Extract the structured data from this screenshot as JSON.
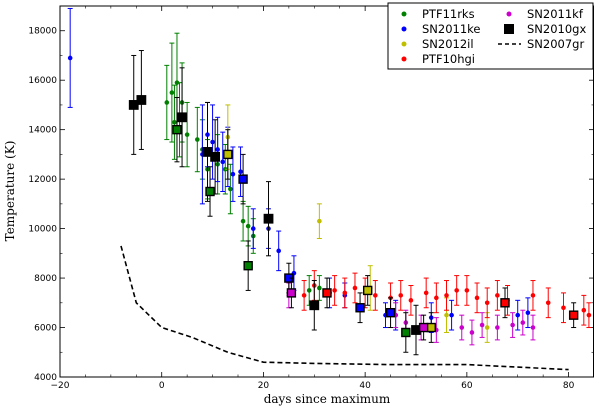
{
  "chart_data": {
    "type": "scatter",
    "xlabel": "days since maximum",
    "ylabel": "Temperature (K)",
    "xlim": [
      -20,
      85
    ],
    "ylim": [
      4000,
      19000
    ],
    "xticks": [
      -20,
      0,
      20,
      40,
      60,
      80
    ],
    "yticks": [
      4000,
      6000,
      8000,
      10000,
      12000,
      14000,
      16000,
      18000
    ],
    "legend_position": "top-right",
    "series": [
      {
        "name": "PTF11rks",
        "color": "#008000",
        "marker": "circle",
        "points": [
          {
            "x": 1,
            "y": 15100,
            "err": 1500
          },
          {
            "x": 2,
            "y": 15500,
            "err": 2000
          },
          {
            "x": 3,
            "y": 15900,
            "err": 2000
          },
          {
            "x": 4,
            "y": 15100,
            "err": 1600
          },
          {
            "x": 2.5,
            "y": 14300,
            "err": 1500
          },
          {
            "x": 3.5,
            "y": 14400,
            "err": 1500
          },
          {
            "x": 5,
            "y": 13800,
            "err": 1300
          },
          {
            "x": 7,
            "y": 13600,
            "err": 1300
          },
          {
            "x": 8,
            "y": 13200,
            "err": 1200
          },
          {
            "x": 9,
            "y": 12400,
            "err": 1200
          },
          {
            "x": 11,
            "y": 12600,
            "err": 1200
          },
          {
            "x": 12.5,
            "y": 12400,
            "err": 1000
          },
          {
            "x": 13.5,
            "y": 11600,
            "err": 1000
          },
          {
            "x": 16,
            "y": 10300,
            "err": 800
          },
          {
            "x": 17,
            "y": 10100,
            "err": 800
          },
          {
            "x": 18,
            "y": 9700,
            "err": 700
          },
          {
            "x": 29,
            "y": 7500,
            "err": 600
          },
          {
            "x": 31,
            "y": 7600,
            "err": 500
          }
        ]
      },
      {
        "name": "SN2011ke",
        "color": "#0000ff",
        "marker": "circle",
        "points": [
          {
            "x": -18,
            "y": 16900,
            "err": 2000
          },
          {
            "x": 8,
            "y": 13000,
            "err": 2000
          },
          {
            "x": 9,
            "y": 13800,
            "err": 1300
          },
          {
            "x": 10,
            "y": 13500,
            "err": 1500
          },
          {
            "x": 11,
            "y": 13200,
            "err": 1300
          },
          {
            "x": 12,
            "y": 12700,
            "err": 1200
          },
          {
            "x": 13,
            "y": 12900,
            "err": 1200
          },
          {
            "x": 14,
            "y": 12200,
            "err": 1100
          },
          {
            "x": 15.5,
            "y": 12300,
            "err": 1000
          },
          {
            "x": 18,
            "y": 10000,
            "err": 800
          },
          {
            "x": 21,
            "y": 10000,
            "err": 800
          },
          {
            "x": 23,
            "y": 9100,
            "err": 800
          },
          {
            "x": 26,
            "y": 8200,
            "err": 700
          },
          {
            "x": 33,
            "y": 7400,
            "err": 600
          },
          {
            "x": 36,
            "y": 7300,
            "err": 500
          },
          {
            "x": 44,
            "y": 6500,
            "err": 500
          },
          {
            "x": 46,
            "y": 6500,
            "err": 600
          },
          {
            "x": 53,
            "y": 6400,
            "err": 600
          },
          {
            "x": 57,
            "y": 6500,
            "err": 600
          },
          {
            "x": 70,
            "y": 6500,
            "err": 600
          },
          {
            "x": 72,
            "y": 6600,
            "err": 600
          }
        ]
      },
      {
        "name": "SN2012il",
        "color": "#bfbf00",
        "marker": "circle",
        "points": [
          {
            "x": 13,
            "y": 13700,
            "err": 1300
          },
          {
            "x": 31,
            "y": 10300,
            "err": 700
          },
          {
            "x": 41,
            "y": 7600,
            "err": 900
          },
          {
            "x": 56,
            "y": 6500,
            "err": 700
          },
          {
            "x": 64,
            "y": 6000,
            "err": 600
          }
        ]
      },
      {
        "name": "PTF10hgi",
        "color": "#ff0000",
        "marker": "circle",
        "points": [
          {
            "x": 28,
            "y": 7300,
            "err": 600
          },
          {
            "x": 30,
            "y": 7700,
            "err": 600
          },
          {
            "x": 34,
            "y": 7500,
            "err": 600
          },
          {
            "x": 36,
            "y": 7400,
            "err": 600
          },
          {
            "x": 38,
            "y": 7600,
            "err": 600
          },
          {
            "x": 40,
            "y": 7400,
            "err": 600
          },
          {
            "x": 42,
            "y": 7300,
            "err": 600
          },
          {
            "x": 45,
            "y": 7200,
            "err": 600
          },
          {
            "x": 47,
            "y": 7300,
            "err": 600
          },
          {
            "x": 49,
            "y": 7100,
            "err": 600
          },
          {
            "x": 52,
            "y": 7400,
            "err": 600
          },
          {
            "x": 54,
            "y": 7200,
            "err": 600
          },
          {
            "x": 56,
            "y": 7300,
            "err": 600
          },
          {
            "x": 58,
            "y": 7500,
            "err": 600
          },
          {
            "x": 60,
            "y": 7500,
            "err": 600
          },
          {
            "x": 62,
            "y": 7200,
            "err": 600
          },
          {
            "x": 64,
            "y": 7000,
            "err": 600
          },
          {
            "x": 66,
            "y": 7300,
            "err": 600
          },
          {
            "x": 68,
            "y": 7100,
            "err": 600
          },
          {
            "x": 73,
            "y": 7300,
            "err": 600
          },
          {
            "x": 76,
            "y": 7000,
            "err": 600
          },
          {
            "x": 79,
            "y": 6800,
            "err": 600
          },
          {
            "x": 83,
            "y": 6700,
            "err": 600
          },
          {
            "x": 84,
            "y": 6500,
            "err": 500
          }
        ]
      },
      {
        "name": "SN2011kf",
        "color": "#cc00cc",
        "marker": "circle",
        "points": [
          {
            "x": 25,
            "y": 7300,
            "err": 500
          },
          {
            "x": 46,
            "y": 6500,
            "err": 500
          },
          {
            "x": 48,
            "y": 6200,
            "err": 500
          },
          {
            "x": 51,
            "y": 6000,
            "err": 500
          },
          {
            "x": 54,
            "y": 5900,
            "err": 500
          },
          {
            "x": 59,
            "y": 6000,
            "err": 500
          },
          {
            "x": 61,
            "y": 5800,
            "err": 500
          },
          {
            "x": 63,
            "y": 6100,
            "err": 500
          },
          {
            "x": 66,
            "y": 6000,
            "err": 500
          },
          {
            "x": 69,
            "y": 6100,
            "err": 500
          },
          {
            "x": 71,
            "y": 6200,
            "err": 500
          },
          {
            "x": 73,
            "y": 6000,
            "err": 500
          }
        ]
      },
      {
        "name": "SN2010gx",
        "color": "#000000",
        "marker": "square",
        "points": [
          {
            "x": -5.5,
            "y": 15000,
            "err": 2000
          },
          {
            "x": -4,
            "y": 15200,
            "err": 2000
          },
          {
            "x": 4,
            "y": 14500,
            "err": 2000
          },
          {
            "x": 9,
            "y": 13100,
            "err": 2000
          },
          {
            "x": 10.5,
            "y": 12900,
            "err": 1500
          },
          {
            "x": 21,
            "y": 10400,
            "err": 1500
          },
          {
            "x": 30,
            "y": 6900,
            "err": 1000
          },
          {
            "x": 50,
            "y": 5900,
            "err": 1000
          }
        ]
      },
      {
        "name": "SN2007gr",
        "color": "#000000",
        "marker": "dashed-line",
        "points": [
          {
            "x": -8,
            "y": 9300
          },
          {
            "x": -5,
            "y": 7000
          },
          {
            "x": 0,
            "y": 6000
          },
          {
            "x": 6,
            "y": 5600
          },
          {
            "x": 13,
            "y": 5000
          },
          {
            "x": 20,
            "y": 4600
          },
          {
            "x": 30,
            "y": 4550
          },
          {
            "x": 45,
            "y": 4500
          },
          {
            "x": 60,
            "y": 4500
          },
          {
            "x": 70,
            "y": 4400
          },
          {
            "x": 80,
            "y": 4300
          }
        ]
      }
    ],
    "highlight_squares": [
      {
        "x": 3,
        "y": 14000,
        "err": 1300,
        "fill": "#008000"
      },
      {
        "x": 9.5,
        "y": 11500,
        "err": 1000,
        "fill": "#008000"
      },
      {
        "x": 17,
        "y": 8500,
        "err": 1000,
        "fill": "#008000"
      },
      {
        "x": 48,
        "y": 5800,
        "err": 800,
        "fill": "#008000"
      },
      {
        "x": 16,
        "y": 12000,
        "err": 1000,
        "fill": "#0000ff"
      },
      {
        "x": 25,
        "y": 8000,
        "err": 600,
        "fill": "#0000ff"
      },
      {
        "x": 39,
        "y": 6800,
        "err": 600,
        "fill": "#0000ff"
      },
      {
        "x": 45,
        "y": 6600,
        "err": 600,
        "fill": "#0000ff"
      },
      {
        "x": 13,
        "y": 13000,
        "err": 1000,
        "fill": "#bfbf00"
      },
      {
        "x": 40.5,
        "y": 7500,
        "err": 600,
        "fill": "#bfbf00"
      },
      {
        "x": 53,
        "y": 6000,
        "err": 600,
        "fill": "#bfbf00"
      },
      {
        "x": 25.5,
        "y": 7400,
        "err": 600,
        "fill": "#cc00cc"
      },
      {
        "x": 51.5,
        "y": 6000,
        "err": 500,
        "fill": "#cc00cc"
      },
      {
        "x": 32.5,
        "y": 7400,
        "err": 600,
        "fill": "#ff0000"
      },
      {
        "x": 67.5,
        "y": 7000,
        "err": 600,
        "fill": "#ff0000"
      },
      {
        "x": 81,
        "y": 6500,
        "err": 500,
        "fill": "#ff0000"
      }
    ],
    "legend": {
      "entries": [
        {
          "label": "PTF11rks",
          "color": "#008000",
          "marker": "circle"
        },
        {
          "label": "SN2011kf",
          "color": "#cc00cc",
          "marker": "circle"
        },
        {
          "label": "SN2011ke",
          "color": "#0000ff",
          "marker": "circle"
        },
        {
          "label": "SN2010gx",
          "color": "#000000",
          "marker": "square"
        },
        {
          "label": "SN2012il",
          "color": "#bfbf00",
          "marker": "circle"
        },
        {
          "label": "SN2007gr",
          "color": "#000000",
          "marker": "dashed-line"
        },
        {
          "label": "PTF10hgi",
          "color": "#ff0000",
          "marker": "circle"
        }
      ]
    }
  }
}
